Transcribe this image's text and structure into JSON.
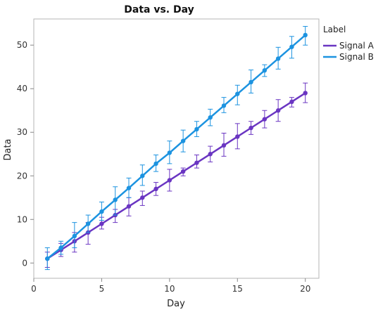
{
  "chart_data": {
    "type": "line",
    "title": "Data vs. Day",
    "xlabel": "Day",
    "ylabel": "Data",
    "xlim": [
      0,
      21
    ],
    "ylim": [
      -3.5,
      56
    ],
    "xticks": [
      0,
      5,
      10,
      15,
      20
    ],
    "yticks": [
      0,
      10,
      20,
      30,
      40,
      50
    ],
    "grid": false,
    "legend": {
      "title": "Label",
      "position": "right"
    },
    "x": [
      1,
      2,
      3,
      4,
      5,
      6,
      7,
      8,
      9,
      10,
      11,
      12,
      13,
      14,
      15,
      16,
      17,
      18,
      19,
      20
    ],
    "series": [
      {
        "name": "Signal A",
        "color": "#6a35c2",
        "values": [
          1,
          3,
          5,
          7,
          9,
          11,
          13,
          15,
          17,
          19,
          21,
          23,
          25,
          27,
          29,
          31,
          33,
          35,
          37,
          39
        ],
        "err_low": [
          -1,
          1.5,
          2.5,
          4.3,
          7.8,
          9.3,
          10.8,
          13.2,
          15.5,
          16.5,
          20.0,
          21.8,
          23.2,
          24.5,
          26.2,
          29.5,
          31.0,
          32.5,
          35.8,
          36.8
        ],
        "err_high": [
          2.5,
          4.5,
          7.0,
          9.3,
          10.5,
          12.3,
          15.0,
          16.5,
          18.5,
          21.5,
          21.8,
          24.8,
          26.8,
          29.8,
          32.0,
          32.5,
          35.0,
          37.5,
          38.0,
          41.3
        ]
      },
      {
        "name": "Signal B",
        "color": "#1c93e0",
        "values": [
          1.0,
          3.5,
          6.2,
          9.0,
          11.8,
          14.5,
          17.2,
          20.0,
          22.8,
          25.3,
          28.0,
          30.7,
          33.4,
          36.1,
          38.8,
          41.5,
          44.2,
          46.9,
          49.6,
          52.3
        ],
        "err_low": [
          -1.5,
          2.0,
          3.5,
          7.0,
          9.8,
          11.0,
          15.0,
          17.8,
          21.0,
          22.8,
          25.5,
          29.0,
          31.5,
          34.5,
          36.3,
          39.0,
          42.8,
          44.5,
          47.0,
          50.0
        ],
        "err_high": [
          3.5,
          5.0,
          9.3,
          11.0,
          14.0,
          17.5,
          19.5,
          22.5,
          24.8,
          28.0,
          30.5,
          32.5,
          35.3,
          38.0,
          40.8,
          44.3,
          45.5,
          49.5,
          52.0,
          54.3
        ]
      }
    ]
  }
}
